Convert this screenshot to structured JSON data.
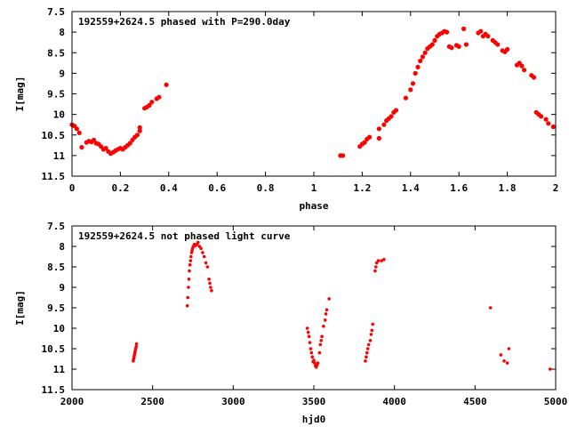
{
  "colors": {
    "point": "#ff0000",
    "axis": "#000000",
    "background": "#ffffff"
  },
  "chart_data": [
    {
      "type": "scatter",
      "title": "192559+2624.5 phased with P=290.0day",
      "xlabel": "phase",
      "ylabel": "I[mag]",
      "xlim": [
        0,
        2
      ],
      "ylim": [
        11.5,
        7.5
      ],
      "y_inverted": true,
      "grid": false,
      "xticks": [
        0,
        0.2,
        0.4,
        0.6,
        0.8,
        1,
        1.2,
        1.4,
        1.6,
        1.8,
        2
      ],
      "xtick_labels": [
        "0",
        "0.2",
        "0.4",
        "0.6",
        "0.8",
        "1",
        "1.2",
        "1.4",
        "1.6",
        "1.8",
        "2"
      ],
      "yticks": [
        7.5,
        8,
        8.5,
        9,
        9.5,
        10,
        10.5,
        11,
        11.5
      ],
      "ytick_labels": [
        "7.5",
        "8",
        "8.5",
        "9",
        "9.5",
        "10",
        "10.5",
        "11",
        "11.5"
      ],
      "series": [
        {
          "points": [
            [
              0.0,
              10.25
            ],
            [
              0.01,
              10.28
            ],
            [
              0.02,
              10.35
            ],
            [
              0.03,
              10.45
            ],
            [
              0.04,
              10.8
            ],
            [
              0.06,
              10.68
            ],
            [
              0.07,
              10.65
            ],
            [
              0.08,
              10.67
            ],
            [
              0.09,
              10.62
            ],
            [
              0.1,
              10.7
            ],
            [
              0.11,
              10.72
            ],
            [
              0.12,
              10.78
            ],
            [
              0.13,
              10.85
            ],
            [
              0.14,
              10.82
            ],
            [
              0.15,
              10.9
            ],
            [
              0.16,
              10.95
            ],
            [
              0.17,
              10.92
            ],
            [
              0.18,
              10.88
            ],
            [
              0.19,
              10.85
            ],
            [
              0.2,
              10.82
            ],
            [
              0.21,
              10.85
            ],
            [
              0.22,
              10.8
            ],
            [
              0.23,
              10.75
            ],
            [
              0.24,
              10.7
            ],
            [
              0.25,
              10.62
            ],
            [
              0.26,
              10.55
            ],
            [
              0.27,
              10.5
            ],
            [
              0.28,
              10.4
            ],
            [
              0.28,
              10.32
            ],
            [
              0.3,
              9.85
            ],
            [
              0.31,
              9.82
            ],
            [
              0.32,
              9.78
            ],
            [
              0.33,
              9.7
            ],
            [
              0.35,
              9.62
            ],
            [
              0.36,
              9.58
            ],
            [
              0.39,
              9.28
            ],
            [
              1.11,
              11.0
            ],
            [
              1.12,
              11.0
            ],
            [
              1.19,
              10.78
            ],
            [
              1.2,
              10.72
            ],
            [
              1.21,
              10.68
            ],
            [
              1.22,
              10.6
            ],
            [
              1.23,
              10.55
            ],
            [
              1.27,
              10.58
            ],
            [
              1.27,
              10.35
            ],
            [
              1.29,
              10.25
            ],
            [
              1.3,
              10.15
            ],
            [
              1.31,
              10.1
            ],
            [
              1.32,
              10.05
            ],
            [
              1.33,
              9.95
            ],
            [
              1.34,
              9.9
            ],
            [
              1.38,
              9.6
            ],
            [
              1.4,
              9.4
            ],
            [
              1.41,
              9.25
            ],
            [
              1.42,
              9.0
            ],
            [
              1.43,
              8.85
            ],
            [
              1.44,
              8.7
            ],
            [
              1.45,
              8.6
            ],
            [
              1.46,
              8.5
            ],
            [
              1.47,
              8.4
            ],
            [
              1.48,
              8.35
            ],
            [
              1.49,
              8.3
            ],
            [
              1.5,
              8.2
            ],
            [
              1.51,
              8.1
            ],
            [
              1.52,
              8.05
            ],
            [
              1.53,
              8.02
            ],
            [
              1.54,
              7.98
            ],
            [
              1.55,
              8.0
            ],
            [
              1.56,
              8.35
            ],
            [
              1.57,
              8.38
            ],
            [
              1.59,
              8.32
            ],
            [
              1.6,
              8.35
            ],
            [
              1.62,
              7.92
            ],
            [
              1.63,
              8.3
            ],
            [
              1.68,
              8.02
            ],
            [
              1.69,
              7.98
            ],
            [
              1.7,
              8.1
            ],
            [
              1.71,
              8.05
            ],
            [
              1.72,
              8.1
            ],
            [
              1.74,
              8.2
            ],
            [
              1.75,
              8.25
            ],
            [
              1.76,
              8.3
            ],
            [
              1.78,
              8.45
            ],
            [
              1.79,
              8.48
            ],
            [
              1.8,
              8.42
            ],
            [
              1.84,
              8.8
            ],
            [
              1.85,
              8.75
            ],
            [
              1.86,
              8.82
            ],
            [
              1.87,
              8.92
            ],
            [
              1.9,
              9.05
            ],
            [
              1.91,
              9.1
            ],
            [
              1.92,
              9.95
            ],
            [
              1.93,
              10.0
            ],
            [
              1.94,
              10.05
            ],
            [
              1.96,
              10.12
            ],
            [
              1.97,
              10.22
            ],
            [
              1.99,
              10.3
            ]
          ]
        }
      ]
    },
    {
      "type": "scatter",
      "title": "192559+2624.5 not phased light curve",
      "xlabel": "hjd0",
      "ylabel": "I[mag]",
      "xlim": [
        2000,
        5000
      ],
      "ylim": [
        11.5,
        7.5
      ],
      "y_inverted": true,
      "grid": false,
      "xticks": [
        2000,
        2500,
        3000,
        3500,
        4000,
        4500,
        5000
      ],
      "xtick_labels": [
        "2000",
        "2500",
        "3000",
        "3500",
        "4000",
        "4500",
        "5000"
      ],
      "yticks": [
        7.5,
        8,
        8.5,
        9,
        9.5,
        10,
        10.5,
        11,
        11.5
      ],
      "ytick_labels": [
        "7.5",
        "8",
        "8.5",
        "9",
        "9.5",
        "10",
        "10.5",
        "11",
        "11.5"
      ],
      "series": [
        {
          "points": [
            [
              2380,
              10.8
            ],
            [
              2382,
              10.75
            ],
            [
              2385,
              10.7
            ],
            [
              2387,
              10.65
            ],
            [
              2390,
              10.6
            ],
            [
              2392,
              10.55
            ],
            [
              2395,
              10.5
            ],
            [
              2398,
              10.45
            ],
            [
              2400,
              10.38
            ],
            [
              2715,
              9.45
            ],
            [
              2718,
              9.25
            ],
            [
              2722,
              9.0
            ],
            [
              2725,
              8.8
            ],
            [
              2728,
              8.6
            ],
            [
              2732,
              8.45
            ],
            [
              2735,
              8.35
            ],
            [
              2738,
              8.25
            ],
            [
              2742,
              8.15
            ],
            [
              2745,
              8.1
            ],
            [
              2748,
              8.05
            ],
            [
              2752,
              8.0
            ],
            [
              2758,
              7.95
            ],
            [
              2765,
              7.98
            ],
            [
              2775,
              7.95
            ],
            [
              2782,
              7.9
            ],
            [
              2790,
              8.0
            ],
            [
              2800,
              8.05
            ],
            [
              2810,
              8.15
            ],
            [
              2820,
              8.25
            ],
            [
              2830,
              8.4
            ],
            [
              2840,
              8.5
            ],
            [
              2850,
              8.8
            ],
            [
              2855,
              8.9
            ],
            [
              2860,
              9.0
            ],
            [
              2865,
              9.08
            ],
            [
              3460,
              10.0
            ],
            [
              3465,
              10.1
            ],
            [
              3470,
              10.2
            ],
            [
              3475,
              10.35
            ],
            [
              3480,
              10.5
            ],
            [
              3485,
              10.6
            ],
            [
              3490,
              10.7
            ],
            [
              3495,
              10.82
            ],
            [
              3500,
              10.78
            ],
            [
              3505,
              10.85
            ],
            [
              3510,
              10.92
            ],
            [
              3515,
              10.95
            ],
            [
              3520,
              10.9
            ],
            [
              3525,
              10.85
            ],
            [
              3535,
              10.6
            ],
            [
              3540,
              10.4
            ],
            [
              3545,
              10.3
            ],
            [
              3550,
              10.2
            ],
            [
              3560,
              9.95
            ],
            [
              3570,
              9.8
            ],
            [
              3575,
              9.65
            ],
            [
              3580,
              9.55
            ],
            [
              3595,
              9.28
            ],
            [
              3820,
              10.8
            ],
            [
              3825,
              10.7
            ],
            [
              3830,
              10.6
            ],
            [
              3835,
              10.5
            ],
            [
              3840,
              10.4
            ],
            [
              3850,
              10.3
            ],
            [
              3855,
              10.15
            ],
            [
              3860,
              10.05
            ],
            [
              3865,
              9.9
            ],
            [
              3880,
              8.6
            ],
            [
              3885,
              8.5
            ],
            [
              3890,
              8.4
            ],
            [
              3900,
              8.35
            ],
            [
              3920,
              8.35
            ],
            [
              3935,
              8.32
            ],
            [
              4595,
              9.5
            ],
            [
              4660,
              10.65
            ],
            [
              4680,
              10.8
            ],
            [
              4700,
              10.85
            ],
            [
              4710,
              10.5
            ],
            [
              4965,
              11.0
            ]
          ]
        }
      ]
    }
  ]
}
